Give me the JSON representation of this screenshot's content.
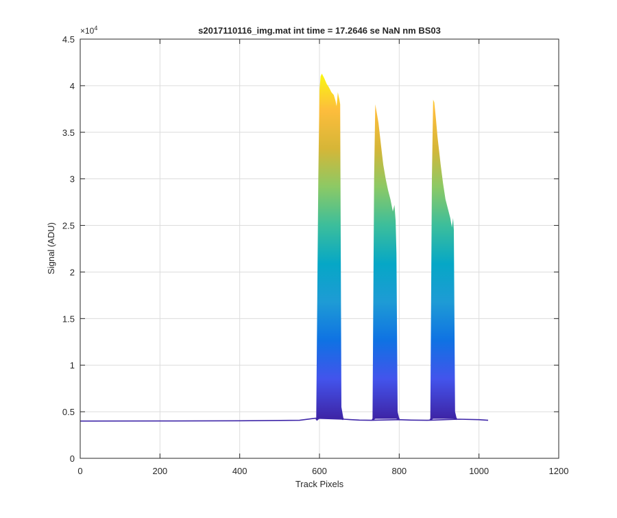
{
  "chart_data": {
    "type": "area",
    "title": "s2017110116_img.mat int time = 17.2646 se  NaN nm BS03",
    "xlabel": "Track Pixels",
    "ylabel": "Signal (ADU)",
    "xlim": [
      0,
      1200
    ],
    "ylim": [
      0,
      45000
    ],
    "x_ticks": [
      0,
      200,
      400,
      600,
      800,
      1000,
      1200
    ],
    "y_ticks": [
      0,
      5000,
      10000,
      15000,
      20000,
      25000,
      30000,
      35000,
      40000,
      45000
    ],
    "y_tick_labels": [
      "0",
      "0.5",
      "1",
      "1.5",
      "2",
      "2.5",
      "3",
      "3.5",
      "4",
      "4.5"
    ],
    "y_exponent_label": "×10",
    "y_exponent": "4",
    "grid": true,
    "colormap": [
      "#3e26a8",
      "#4354ec",
      "#0f72e3",
      "#1e9bd5",
      "#06a7c6",
      "#3cbe9b",
      "#8cc965",
      "#d6b637",
      "#fdbd3c",
      "#f9fb0e"
    ],
    "baseline_series": {
      "x": [
        0,
        200,
        400,
        550,
        590,
        660,
        700,
        730,
        800,
        830,
        870,
        950,
        1000,
        1023
      ],
      "values": [
        4000,
        4010,
        4030,
        4080,
        4300,
        4200,
        4100,
        4080,
        4150,
        4100,
        4080,
        4200,
        4150,
        4080
      ]
    },
    "peaks": [
      {
        "x": [
          592,
          597,
          600,
          603,
          606,
          612,
          618,
          624,
          630,
          636,
          640,
          643,
          646,
          648,
          650,
          652,
          655,
          660
        ],
        "top": [
          4500,
          30000,
          39500,
          41000,
          41300,
          40800,
          40200,
          39800,
          39300,
          39000,
          38400,
          37800,
          39300,
          38900,
          38500,
          38000,
          5500,
          4300
        ],
        "base": [
          4100,
          4300,
          4350,
          4350,
          4350,
          4350,
          4350,
          4350,
          4350,
          4350,
          4350,
          4350,
          4350,
          4350,
          4350,
          4350,
          4300,
          4200
        ]
      },
      {
        "x": [
          733,
          737,
          740,
          744,
          748,
          752,
          756,
          760,
          766,
          772,
          778,
          784,
          788,
          791,
          793,
          796,
          800
        ],
        "top": [
          4400,
          30000,
          38000,
          37000,
          36000,
          34500,
          33000,
          31500,
          30000,
          28800,
          27800,
          26500,
          27200,
          25500,
          22000,
          5000,
          4300
        ],
        "base": [
          4100,
          4300,
          4350,
          4350,
          4350,
          4350,
          4350,
          4350,
          4350,
          4350,
          4350,
          4350,
          4350,
          4350,
          4350,
          4300,
          4200
        ]
      },
      {
        "x": [
          878,
          882,
          885,
          888,
          892,
          896,
          900,
          904,
          910,
          916,
          922,
          928,
          932,
          935,
          937,
          940,
          944
        ],
        "top": [
          4400,
          30000,
          38500,
          38200,
          36500,
          34500,
          33000,
          31500,
          29500,
          27800,
          26800,
          25800,
          24800,
          25800,
          24500,
          5000,
          4300
        ],
        "base": [
          4100,
          4300,
          4350,
          4350,
          4350,
          4350,
          4350,
          4350,
          4350,
          4350,
          4350,
          4350,
          4350,
          4350,
          4350,
          4300,
          4200
        ]
      }
    ]
  }
}
